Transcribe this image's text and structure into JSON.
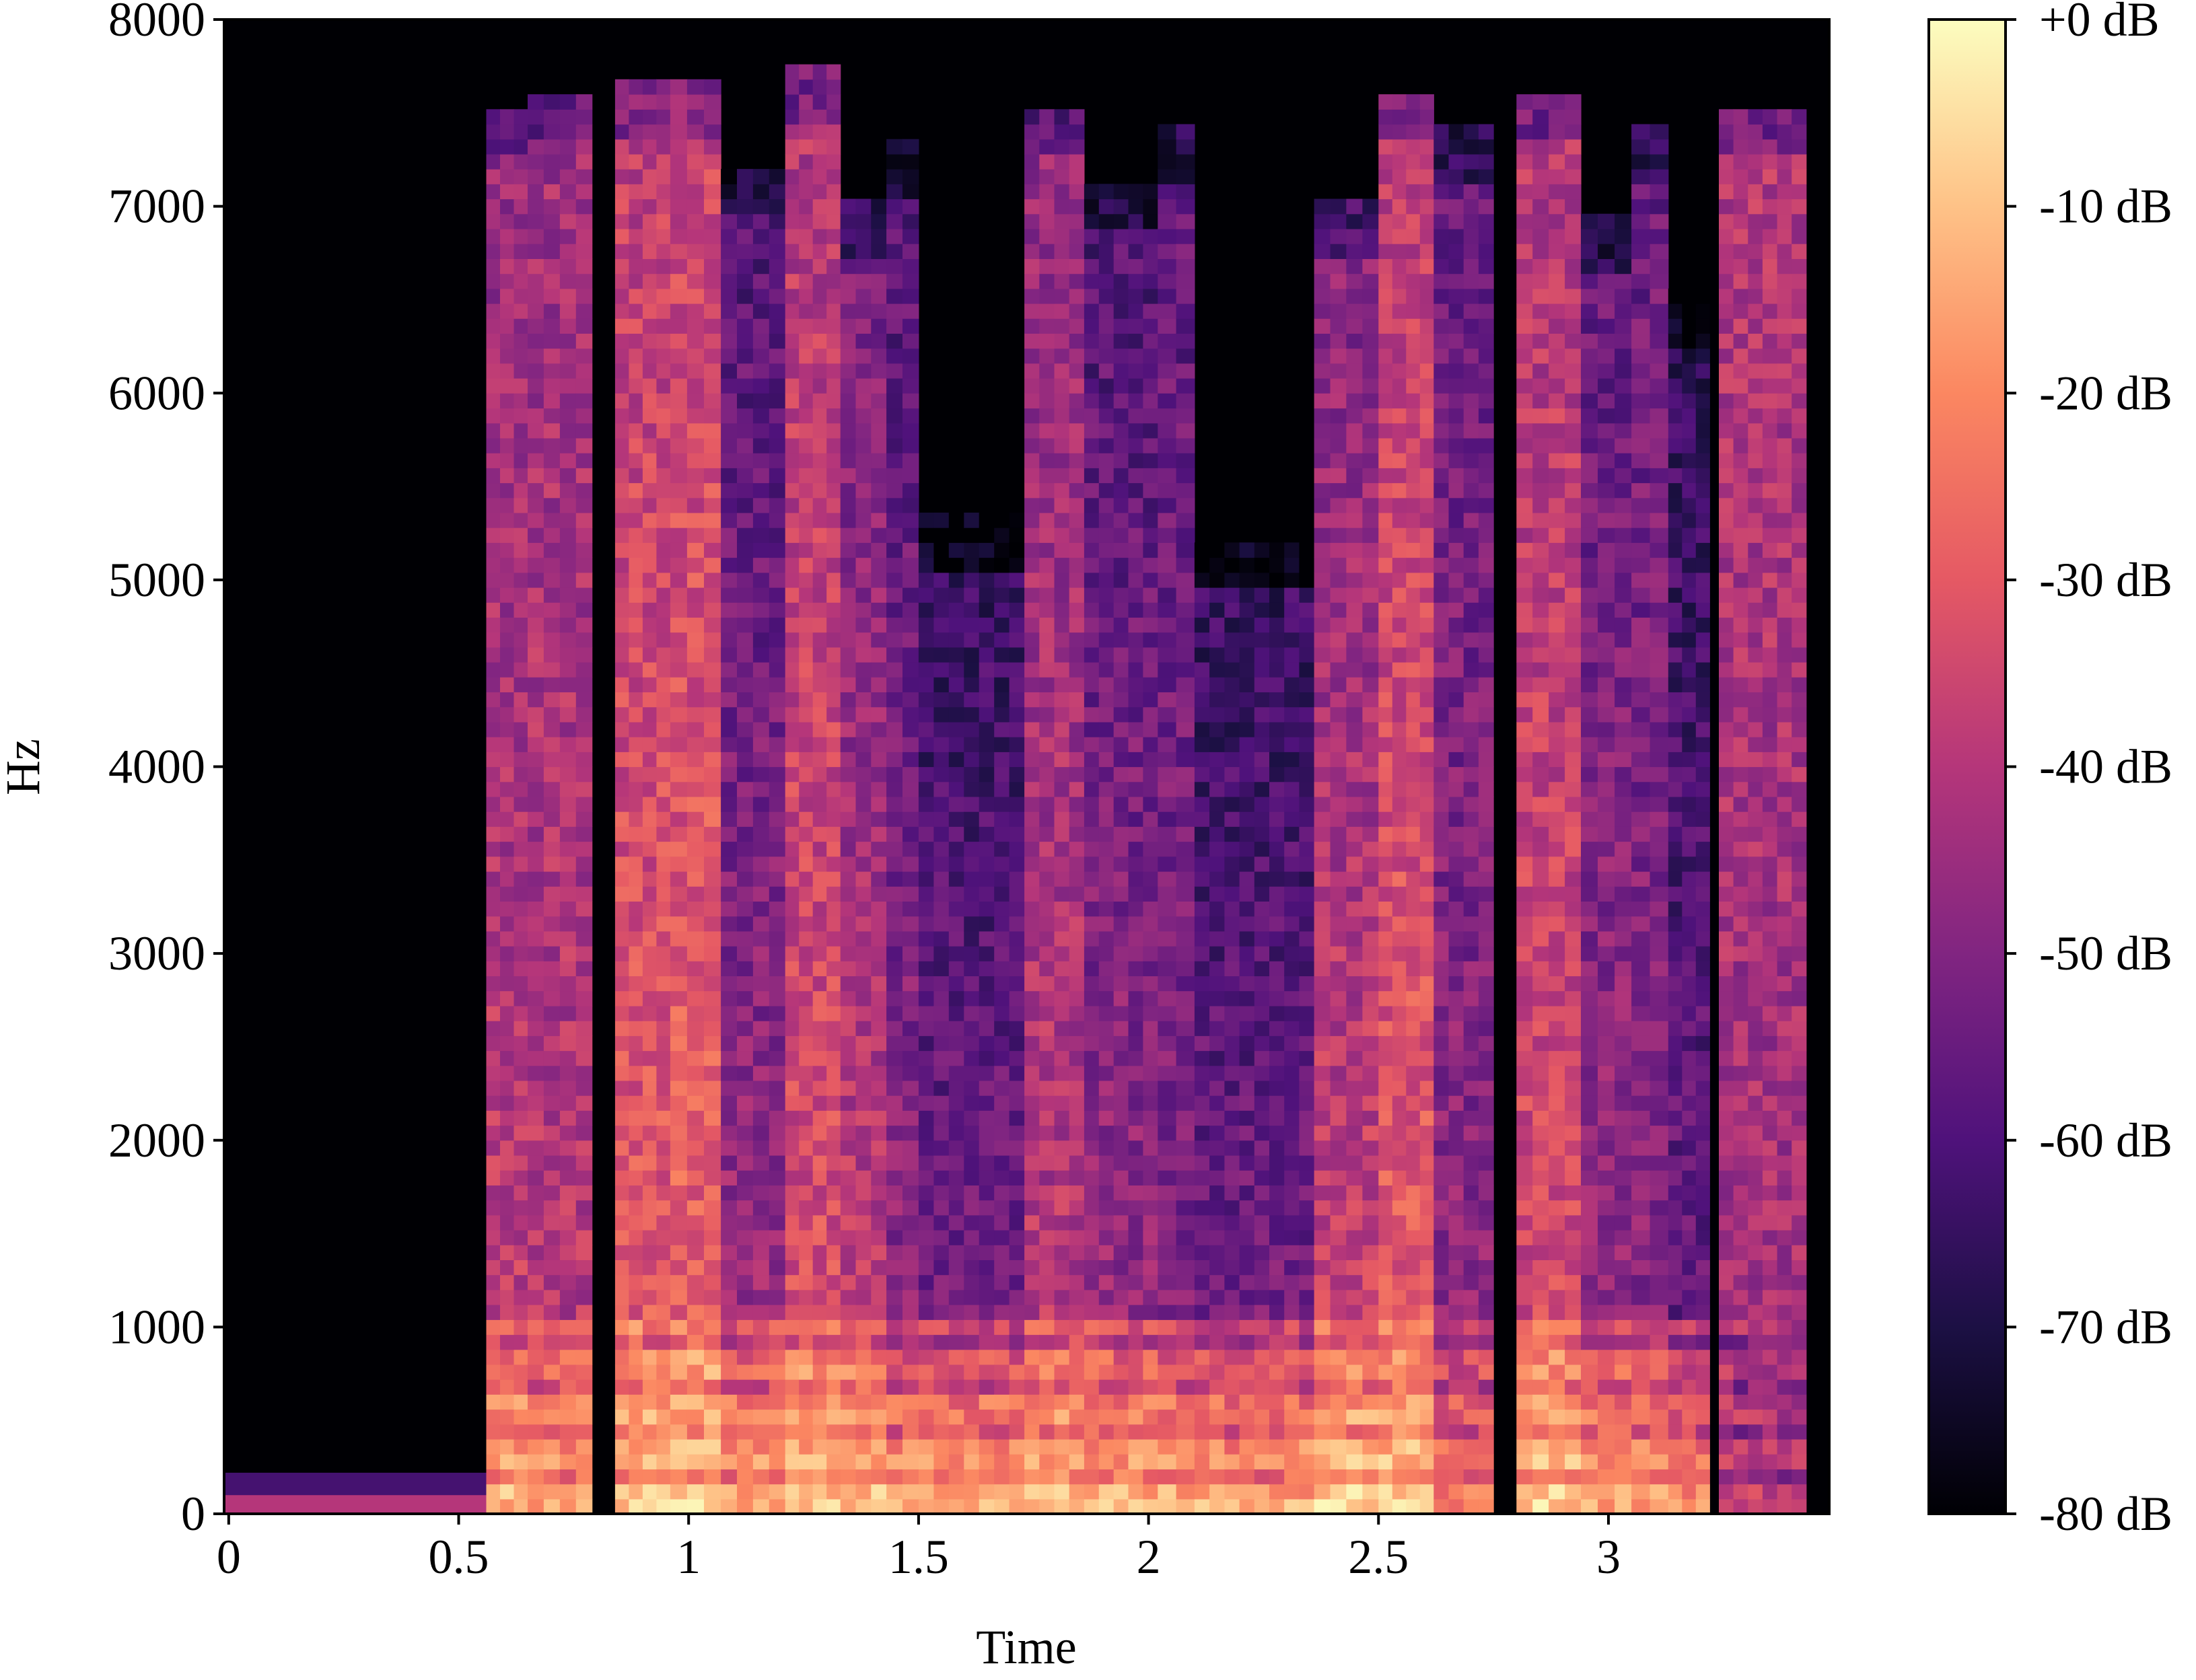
{
  "chart_data": {
    "type": "heatmap",
    "title": "",
    "xlabel": "Time",
    "ylabel": "Hz",
    "colormap": "magma",
    "xlim": [
      -0.01,
      3.48
    ],
    "ylim": [
      0,
      8000
    ],
    "x_ticks": [
      {
        "value": 0,
        "label": "0"
      },
      {
        "value": 0.5,
        "label": "0.5"
      },
      {
        "value": 1,
        "label": "1"
      },
      {
        "value": 1.5,
        "label": "1.5"
      },
      {
        "value": 2,
        "label": "2"
      },
      {
        "value": 2.5,
        "label": "2.5"
      },
      {
        "value": 3,
        "label": "3"
      }
    ],
    "y_ticks": [
      {
        "value": 0,
        "label": "0"
      },
      {
        "value": 1000,
        "label": "1000"
      },
      {
        "value": 2000,
        "label": "2000"
      },
      {
        "value": 3000,
        "label": "3000"
      },
      {
        "value": 4000,
        "label": "4000"
      },
      {
        "value": 5000,
        "label": "5000"
      },
      {
        "value": 6000,
        "label": "6000"
      },
      {
        "value": 7000,
        "label": "7000"
      },
      {
        "value": 8000,
        "label": "8000"
      }
    ],
    "colorbar": {
      "range": [
        -80,
        0
      ],
      "ticks": [
        {
          "value": 0,
          "label": "+0 dB"
        },
        {
          "value": -10,
          "label": "-10 dB"
        },
        {
          "value": -20,
          "label": "-20 dB"
        },
        {
          "value": -30,
          "label": "-30 dB"
        },
        {
          "value": -40,
          "label": "-40 dB"
        },
        {
          "value": -50,
          "label": "-50 dB"
        },
        {
          "value": -60,
          "label": "-60 dB"
        },
        {
          "value": -70,
          "label": "-70 dB"
        },
        {
          "value": -80,
          "label": "-80 dB"
        }
      ],
      "colors": [
        "#000004",
        "#1c1044",
        "#4f127b",
        "#812581",
        "#b5367a",
        "#e55964",
        "#fb8761",
        "#fec287",
        "#fcfdbf"
      ]
    },
    "background_db": -80,
    "segments": [
      {
        "start": 0.56,
        "end": 0.65,
        "top_hz": 7500,
        "low_db": -12,
        "mid_db": -38,
        "high_db": -48
      },
      {
        "start": 0.65,
        "end": 0.79,
        "top_hz": 7600,
        "low_db": -15,
        "mid_db": -40,
        "high_db": -45
      },
      {
        "start": 0.84,
        "end": 0.96,
        "top_hz": 7650,
        "low_db": -10,
        "mid_db": -30,
        "high_db": -40
      },
      {
        "start": 0.96,
        "end": 1.07,
        "top_hz": 7650,
        "low_db": -8,
        "mid_db": -28,
        "high_db": -38
      },
      {
        "start": 1.07,
        "end": 1.21,
        "top_hz": 7200,
        "low_db": -14,
        "mid_db": -45,
        "high_db": -62
      },
      {
        "start": 1.21,
        "end": 1.33,
        "top_hz": 7700,
        "low_db": -10,
        "mid_db": -33,
        "high_db": -42
      },
      {
        "start": 1.33,
        "end": 1.43,
        "top_hz": 7000,
        "low_db": -9,
        "mid_db": -38,
        "high_db": -55
      },
      {
        "start": 1.43,
        "end": 1.5,
        "top_hz": 7300,
        "low_db": -14,
        "mid_db": -48,
        "high_db": -60
      },
      {
        "start": 1.5,
        "end": 1.73,
        "top_hz": 5300,
        "low_db": -12,
        "mid_db": -52,
        "high_db": -68
      },
      {
        "start": 1.73,
        "end": 1.86,
        "top_hz": 7500,
        "low_db": -10,
        "mid_db": -40,
        "high_db": -48
      },
      {
        "start": 1.86,
        "end": 2.02,
        "top_hz": 7100,
        "low_db": -12,
        "mid_db": -46,
        "high_db": -62
      },
      {
        "start": 2.02,
        "end": 2.1,
        "top_hz": 7400,
        "low_db": -13,
        "mid_db": -50,
        "high_db": -58
      },
      {
        "start": 2.1,
        "end": 2.36,
        "top_hz": 5200,
        "low_db": -14,
        "mid_db": -52,
        "high_db": -68
      },
      {
        "start": 2.36,
        "end": 2.5,
        "top_hz": 7000,
        "low_db": -8,
        "mid_db": -36,
        "high_db": -52
      },
      {
        "start": 2.5,
        "end": 2.62,
        "top_hz": 7600,
        "low_db": -9,
        "mid_db": -30,
        "high_db": -40
      },
      {
        "start": 2.62,
        "end": 2.75,
        "top_hz": 7400,
        "low_db": -22,
        "mid_db": -48,
        "high_db": -56
      },
      {
        "start": 2.8,
        "end": 2.94,
        "top_hz": 7600,
        "low_db": -8,
        "mid_db": -34,
        "high_db": -42
      },
      {
        "start": 2.94,
        "end": 3.05,
        "top_hz": 6900,
        "low_db": -14,
        "mid_db": -45,
        "high_db": -58
      },
      {
        "start": 3.05,
        "end": 3.13,
        "top_hz": 7400,
        "low_db": -16,
        "mid_db": -48,
        "high_db": -56
      },
      {
        "start": 3.13,
        "end": 3.22,
        "top_hz": 6500,
        "low_db": -20,
        "mid_db": -55,
        "high_db": -68
      },
      {
        "start": 3.24,
        "end": 3.43,
        "top_hz": 7500,
        "low_db": -38,
        "mid_db": -44,
        "high_db": -40
      }
    ]
  }
}
